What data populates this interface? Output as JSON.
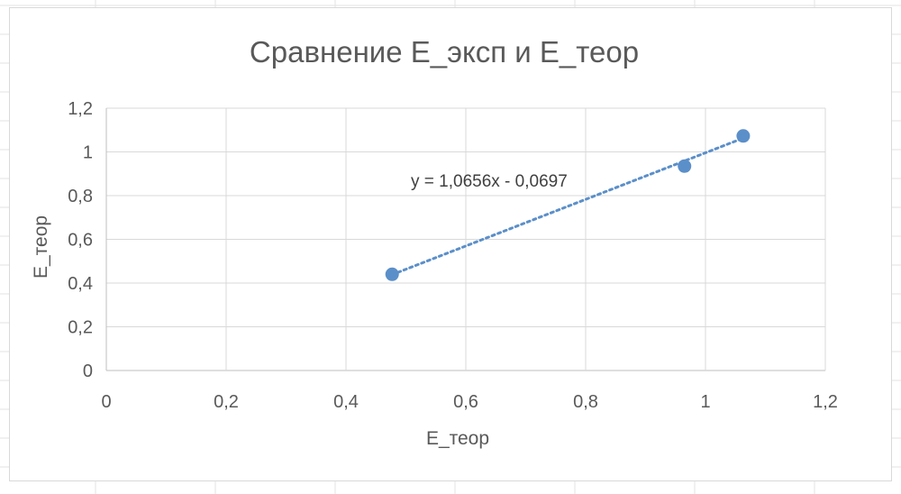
{
  "chart_data": {
    "type": "scatter",
    "title": "Сравнение E_эксп и E_теор",
    "xlabel": "E_теор",
    "ylabel": "E_теор",
    "xlim": [
      0,
      1.2
    ],
    "ylim": [
      0,
      1.2
    ],
    "x_ticks": [
      "0",
      "0,2",
      "0,4",
      "0,6",
      "0,8",
      "1",
      "1,2"
    ],
    "y_ticks": [
      "0",
      "0,2",
      "0,4",
      "0,6",
      "0,8",
      "1",
      "1,2"
    ],
    "grid": true,
    "series": [
      {
        "points": [
          {
            "x": 0.477,
            "y": 0.44
          },
          {
            "x": 0.965,
            "y": 0.935
          },
          {
            "x": 1.063,
            "y": 1.073
          }
        ],
        "color": "#5b8fc9"
      }
    ],
    "trendline": {
      "type": "linear",
      "slope": 1.0656,
      "intercept": -0.0697,
      "x_range": [
        0.477,
        1.063
      ],
      "style": "dotted",
      "color": "#5b8fc9",
      "label": "y = 1,0656x - 0,0697"
    }
  }
}
